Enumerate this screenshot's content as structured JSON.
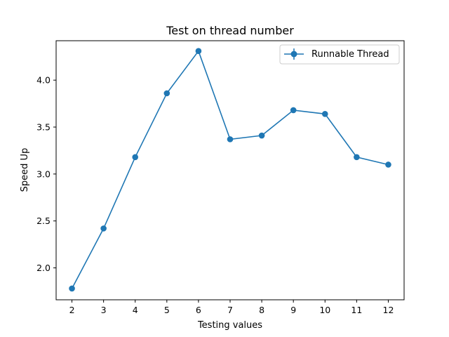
{
  "chart_data": {
    "type": "line",
    "title": "Test on thread number",
    "xlabel": "Testing values",
    "ylabel": "Speed Up",
    "x": [
      2,
      3,
      4,
      5,
      6,
      7,
      8,
      9,
      10,
      11,
      12
    ],
    "series": [
      {
        "name": "Runnable Thread",
        "color": "#1f77b4",
        "values": [
          1.78,
          2.42,
          3.18,
          3.86,
          4.31,
          3.37,
          3.41,
          3.68,
          3.64,
          3.18,
          3.1
        ]
      }
    ],
    "xticks": [
      "2",
      "3",
      "4",
      "5",
      "6",
      "7",
      "8",
      "9",
      "10",
      "11",
      "12"
    ],
    "yticks": [
      "2.0",
      "2.5",
      "3.0",
      "3.5",
      "4.0"
    ],
    "xlim": [
      1.5,
      12.5
    ],
    "ylim": [
      1.66,
      4.42
    ],
    "grid": false,
    "legend_position": "upper-right"
  }
}
